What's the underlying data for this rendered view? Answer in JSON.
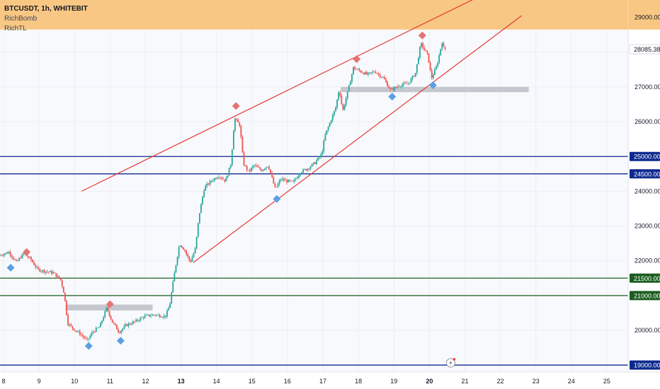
{
  "legend": {
    "symbol": "BTCUSDT, 1h, WHITEBIT",
    "indicators": [
      "RichBomb",
      "RichTL"
    ]
  },
  "chart_data": {
    "type": "candlestick",
    "x_ticks": [
      {
        "label": "8",
        "day": 8,
        "bold": false
      },
      {
        "label": "9",
        "day": 9,
        "bold": false
      },
      {
        "label": "10",
        "day": 10,
        "bold": false
      },
      {
        "label": "11",
        "day": 11,
        "bold": false
      },
      {
        "label": "12",
        "day": 12,
        "bold": false
      },
      {
        "label": "13",
        "day": 13,
        "bold": true
      },
      {
        "label": "14",
        "day": 14,
        "bold": false
      },
      {
        "label": "15",
        "day": 15,
        "bold": false
      },
      {
        "label": "16",
        "day": 16,
        "bold": false
      },
      {
        "label": "17",
        "day": 17,
        "bold": false
      },
      {
        "label": "18",
        "day": 18,
        "bold": false
      },
      {
        "label": "19",
        "day": 19,
        "bold": false
      },
      {
        "label": "20",
        "day": 20,
        "bold": true
      },
      {
        "label": "21",
        "day": 21,
        "bold": false
      },
      {
        "label": "22",
        "day": 22,
        "bold": false
      },
      {
        "label": "23",
        "day": 23,
        "bold": false
      },
      {
        "label": "24",
        "day": 24,
        "bold": false
      },
      {
        "label": "25",
        "day": 25,
        "bold": false
      }
    ],
    "y_ticks": [
      29000,
      28000,
      27000,
      26000,
      25000,
      24000,
      23000,
      22000,
      21000,
      20000
    ],
    "y_tick_labels": [
      "29000.00",
      "28000.00",
      "27000.00",
      "26000.00",
      "25000.00",
      "24000.00",
      "23000.00",
      "22000.00",
      "21000.00",
      "20000.00"
    ],
    "ylim": [
      18800,
      29500
    ],
    "xlim": [
      7.9,
      25.6
    ],
    "current_price": {
      "value": 28085.38,
      "label": "28085.38"
    },
    "horizontal_levels": [
      {
        "value": 25000,
        "label": "25000.00",
        "color": "#0d2a8f"
      },
      {
        "value": 24500,
        "label": "24500.00",
        "color": "#0d2a8f"
      },
      {
        "value": 21500,
        "label": "21500.00",
        "color": "#1b5e20"
      },
      {
        "value": 21000,
        "label": "21000.00",
        "color": "#1b5e20"
      },
      {
        "value": 19000,
        "label": "19000.00",
        "color": "#0d2a8f"
      }
    ],
    "resistance_band": {
      "from": 28650,
      "to": 29500,
      "color": "#f9c784"
    },
    "zones": [
      {
        "x0": 17.5,
        "x1": 22.8,
        "y0": 26850,
        "y1": 27000
      },
      {
        "x0": 9.75,
        "x1": 12.2,
        "y0": 20570,
        "y1": 20740
      }
    ],
    "trendlines": [
      {
        "x0": 10.2,
        "y0": 24000,
        "x1": 21.6,
        "y1": 29700,
        "color": "#e53935"
      },
      {
        "x0": 13.35,
        "y0": 21950,
        "x1": 22.6,
        "y1": 29050,
        "color": "#e53935"
      }
    ],
    "sell_markers": [
      {
        "x": 8.65,
        "y": 22250
      },
      {
        "x": 11.0,
        "y": 20750
      },
      {
        "x": 14.55,
        "y": 26450
      },
      {
        "x": 17.95,
        "y": 27800
      },
      {
        "x": 19.8,
        "y": 28480
      }
    ],
    "buy_markers": [
      {
        "x": 8.2,
        "y": 21800
      },
      {
        "x": 10.4,
        "y": 19550
      },
      {
        "x": 11.3,
        "y": 19700
      },
      {
        "x": 15.7,
        "y": 23780
      },
      {
        "x": 18.95,
        "y": 26720
      },
      {
        "x": 20.1,
        "y": 27050
      }
    ],
    "price_path": [
      [
        7.9,
        22150
      ],
      [
        8.2,
        22250
      ],
      [
        8.4,
        21950
      ],
      [
        8.6,
        22200
      ],
      [
        8.8,
        22050
      ],
      [
        9.0,
        21750
      ],
      [
        9.2,
        21700
      ],
      [
        9.45,
        21650
      ],
      [
        9.65,
        21450
      ],
      [
        9.75,
        21050
      ],
      [
        9.85,
        20200
      ],
      [
        10.0,
        20050
      ],
      [
        10.2,
        19900
      ],
      [
        10.4,
        19700
      ],
      [
        10.55,
        19950
      ],
      [
        10.75,
        20100
      ],
      [
        10.95,
        20650
      ],
      [
        11.1,
        20250
      ],
      [
        11.3,
        19950
      ],
      [
        11.5,
        20150
      ],
      [
        11.75,
        20250
      ],
      [
        12.0,
        20400
      ],
      [
        12.3,
        20450
      ],
      [
        12.6,
        20400
      ],
      [
        12.72,
        20700
      ],
      [
        12.85,
        21600
      ],
      [
        13.0,
        22500
      ],
      [
        13.15,
        22300
      ],
      [
        13.3,
        21950
      ],
      [
        13.45,
        22350
      ],
      [
        13.55,
        23300
      ],
      [
        13.7,
        24100
      ],
      [
        13.9,
        24300
      ],
      [
        14.1,
        24450
      ],
      [
        14.3,
        24300
      ],
      [
        14.45,
        24800
      ],
      [
        14.55,
        26100
      ],
      [
        14.7,
        25900
      ],
      [
        14.8,
        24800
      ],
      [
        14.95,
        24550
      ],
      [
        15.1,
        24750
      ],
      [
        15.3,
        24600
      ],
      [
        15.5,
        24750
      ],
      [
        15.7,
        24050
      ],
      [
        15.85,
        24350
      ],
      [
        16.0,
        24300
      ],
      [
        16.2,
        24250
      ],
      [
        16.4,
        24550
      ],
      [
        16.6,
        24650
      ],
      [
        16.8,
        24800
      ],
      [
        17.0,
        25050
      ],
      [
        17.1,
        25600
      ],
      [
        17.25,
        26000
      ],
      [
        17.4,
        26400
      ],
      [
        17.5,
        26950
      ],
      [
        17.6,
        26300
      ],
      [
        17.75,
        26900
      ],
      [
        17.9,
        27550
      ],
      [
        18.1,
        27450
      ],
      [
        18.3,
        27350
      ],
      [
        18.5,
        27450
      ],
      [
        18.75,
        27250
      ],
      [
        18.95,
        26900
      ],
      [
        19.2,
        27050
      ],
      [
        19.45,
        27100
      ],
      [
        19.65,
        27400
      ],
      [
        19.8,
        28250
      ],
      [
        20.0,
        27900
      ],
      [
        20.1,
        27250
      ],
      [
        20.25,
        27600
      ],
      [
        20.4,
        28300
      ],
      [
        20.45,
        28085
      ]
    ]
  }
}
